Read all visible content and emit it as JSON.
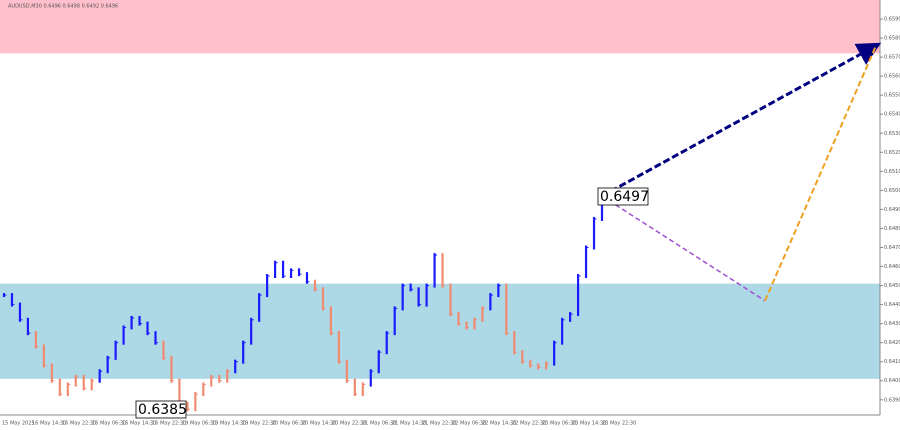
{
  "chart_data": {
    "type": "wave-bars",
    "title": "AUDUSD,M30  0.6496 0.6498 0.6492 0.6496",
    "ylim": [
      0.6382,
      0.66
    ],
    "yticks": [
      {
        "value": 0.639,
        "label": "0.6390"
      },
      {
        "value": 0.64,
        "label": "0.6400"
      },
      {
        "value": 0.641,
        "label": "0.6410"
      },
      {
        "value": 0.642,
        "label": "0.6420"
      },
      {
        "value": 0.643,
        "label": "0.6430"
      },
      {
        "value": 0.644,
        "label": "0.6440"
      },
      {
        "value": 0.645,
        "label": "0.6450"
      },
      {
        "value": 0.646,
        "label": "0.6460"
      },
      {
        "value": 0.647,
        "label": "0.6470"
      },
      {
        "value": 0.648,
        "label": "0.6480"
      },
      {
        "value": 0.649,
        "label": "0.6490"
      },
      {
        "value": 0.65,
        "label": "0.6500"
      },
      {
        "value": 0.651,
        "label": "0.6510"
      },
      {
        "value": 0.652,
        "label": "0.6520"
      },
      {
        "value": 0.653,
        "label": "0.6530"
      },
      {
        "value": 0.654,
        "label": "0.6540"
      },
      {
        "value": 0.655,
        "label": "0.6550"
      },
      {
        "value": 0.656,
        "label": "0.6560"
      },
      {
        "value": 0.657,
        "label": "0.6570"
      },
      {
        "value": 0.658,
        "label": "0.6580"
      },
      {
        "value": 0.659,
        "label": "0.6590"
      }
    ],
    "categories": [
      "15 May 2025",
      "16 May 14:30",
      "16 May 22:30",
      "16 May 06:30",
      "16 May 14:30",
      "16 May 22:30",
      "19 May 06:30",
      "19 May 14:30",
      "19 May 22:30",
      "20 May 06:30",
      "20 May 14:30",
      "20 May 22:30",
      "21 May 06:30",
      "21 May 14:30",
      "21 May 22:30",
      "22 May 06:30",
      "22 May 14:30",
      "22 May 22:30",
      "23 May 06:30",
      "23 May 14:30",
      "23 May 22:30"
    ],
    "zones": [
      {
        "color": "#ffc0cb",
        "from": 0.6572,
        "to": 0.66
      },
      {
        "color": "#add8e6",
        "from": 0.6401,
        "to": 0.6451
      }
    ],
    "waves": [
      {
        "color": "#1a1aff",
        "values": [
          0.6445,
          0.644,
          0.6432,
          0.6425
        ]
      },
      {
        "color": "#f08a70",
        "values": [
          0.6418,
          0.6408,
          0.64,
          0.6393,
          0.6398,
          0.6402,
          0.6396,
          0.64
        ]
      },
      {
        "color": "#1a1aff",
        "values": [
          0.6405,
          0.6412,
          0.642,
          0.6428,
          0.6433,
          0.643,
          0.6425,
          0.642
        ]
      },
      {
        "color": "#f08a70",
        "values": [
          0.6412,
          0.64,
          0.6388,
          0.6385,
          0.6393,
          0.6398,
          0.6402,
          0.64,
          0.6405
        ]
      },
      {
        "color": "#1a1aff",
        "values": [
          0.641,
          0.642,
          0.6432,
          0.6445,
          0.6455,
          0.6462,
          0.6455,
          0.6458,
          0.6456,
          0.6452
        ]
      },
      {
        "color": "#f08a70",
        "values": [
          0.6448,
          0.6438,
          0.6425,
          0.641,
          0.64,
          0.6393,
          0.6398
        ]
      },
      {
        "color": "#1a1aff",
        "values": [
          0.6405,
          0.6415,
          0.6425,
          0.6438,
          0.645,
          0.6448,
          0.644,
          0.645,
          0.6466
        ]
      },
      {
        "color": "#f08a70",
        "values": [
          0.645,
          0.6435,
          0.643,
          0.6428,
          0.6432,
          0.6438
        ]
      },
      {
        "color": "#1a1aff",
        "values": [
          0.6445,
          0.645
        ]
      },
      {
        "color": "#f08a70",
        "values": [
          0.6425,
          0.6415,
          0.641,
          0.6408,
          0.6407,
          0.6409
        ]
      },
      {
        "color": "#1a1aff",
        "values": [
          0.642,
          0.6432,
          0.6435,
          0.6455,
          0.647,
          0.6485,
          0.6497
        ]
      }
    ],
    "forecast": {
      "start": 0.6497,
      "pullback": 0.6442,
      "target": 0.6576,
      "main_color": "#000080",
      "pullback_color": "#a050d0",
      "target_color": "#f0a020"
    },
    "annotations": [
      "0.6497",
      "0.6385"
    ]
  }
}
